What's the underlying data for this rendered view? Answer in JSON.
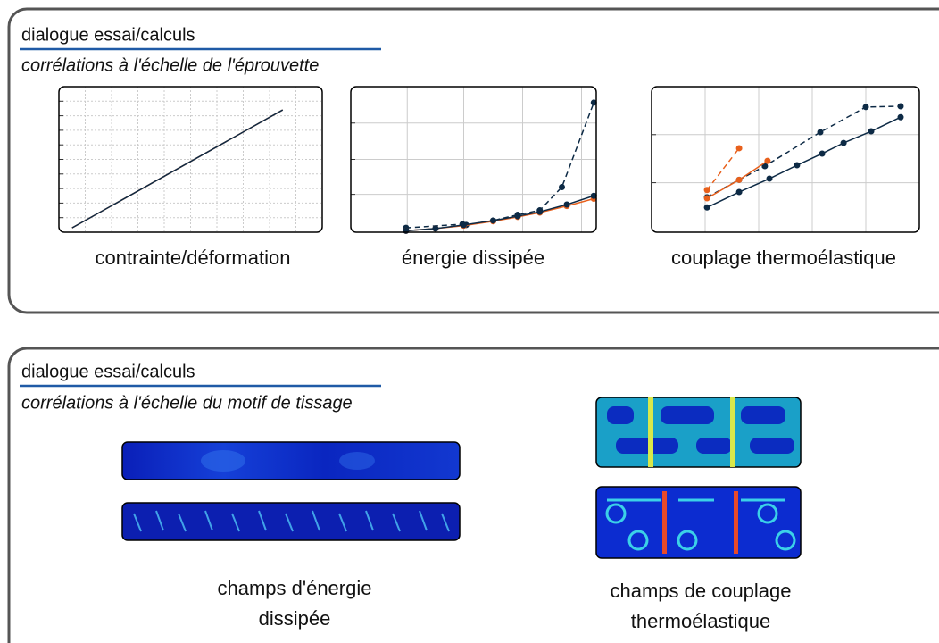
{
  "panels": [
    {
      "title": "dialogue essai/calculs",
      "subtitle": "corrélations à l'échelle de l'éprouvette",
      "charts": [
        {
          "type": "line",
          "caption": "contrainte/déformation",
          "xlim": [
            0,
            100
          ],
          "ylim": [
            0,
            100
          ],
          "xticks": [
            10,
            20,
            30,
            40,
            50,
            60,
            70,
            80,
            90
          ],
          "yticks": [
            10,
            20,
            30,
            40,
            50,
            60,
            70,
            80,
            90
          ],
          "grid_style": "dotted",
          "series": [
            {
              "color": "#e8601c",
              "dashed": false,
              "markers": false,
              "x": [
                5,
                85
              ],
              "values": [
                3,
                84
              ]
            },
            {
              "color": "#0d2a45",
              "dashed": false,
              "markers": false,
              "x": [
                5,
                85
              ],
              "values": [
                3,
                84
              ]
            }
          ]
        },
        {
          "type": "line",
          "caption": "énergie dissipée",
          "xlim": [
            0,
            100
          ],
          "ylim": [
            0,
            100
          ],
          "xticks": [
            23,
            46,
            70,
            94
          ],
          "yticks": [
            26,
            50,
            75
          ],
          "grid_style": "solid",
          "series": [
            {
              "color": "#0d2a45",
              "dashed": true,
              "markers": true,
              "x": [
                22.5,
                45.5,
                47,
                58,
                68,
                77,
                86,
                99
              ],
              "values": [
                3,
                5.5,
                5,
                8,
                12,
                15,
                31,
                89
              ]
            },
            {
              "color": "#e8601c",
              "dashed": false,
              "markers": true,
              "x": [
                22.5,
                34.5,
                46,
                58,
                68,
                77,
                88,
                99
              ],
              "values": [
                1,
                2.5,
                4.5,
                7.5,
                10.5,
                13.5,
                18,
                23
              ]
            },
            {
              "color": "#0d2a45",
              "dashed": false,
              "markers": true,
              "x": [
                22.5,
                34.5,
                46,
                58,
                68,
                77,
                88,
                99
              ],
              "values": [
                1,
                2.5,
                5,
                8,
                11,
                14,
                19,
                25
              ]
            }
          ]
        },
        {
          "type": "line",
          "caption": "couplage thermoélastique",
          "xlim": [
            0,
            100
          ],
          "ylim": [
            0,
            100
          ],
          "xticks": [
            20,
            40,
            60,
            80
          ],
          "yticks": [
            34,
            67
          ],
          "grid_style": "solid",
          "series": [
            {
              "color": "#0d2a45",
              "dashed": false,
              "markers": true,
              "x": [
                20.7,
                32.7,
                44,
                54.3,
                63.7,
                71.7,
                82,
                93
              ],
              "values": [
                17,
                27.6,
                36.8,
                46,
                54,
                61.3,
                69.3,
                79
              ]
            },
            {
              "color": "#0d2a45",
              "dashed": true,
              "markers": true,
              "x": [
                20.7,
                32.7,
                42.3,
                63,
                80,
                93
              ],
              "values": [
                24,
                36,
                45.4,
                68.7,
                86,
                86.5
              ]
            },
            {
              "color": "#e8601c",
              "dashed": true,
              "markers": true,
              "x": [
                20.7,
                32.7
              ],
              "values": [
                29,
                57.7
              ]
            },
            {
              "color": "#e8601c",
              "dashed": false,
              "markers": true,
              "x": [
                20.7,
                32.7,
                43.3
              ],
              "values": [
                23.3,
                36,
                49
              ]
            }
          ]
        }
      ]
    },
    {
      "title": "dialogue essai/calculs",
      "subtitle": "corrélations à l'échelle du motif de tissage",
      "captions": [
        [
          "champs d'énergie",
          "dissipée"
        ],
        [
          "champs de couplage",
          "thermoélastique"
        ]
      ]
    }
  ]
}
